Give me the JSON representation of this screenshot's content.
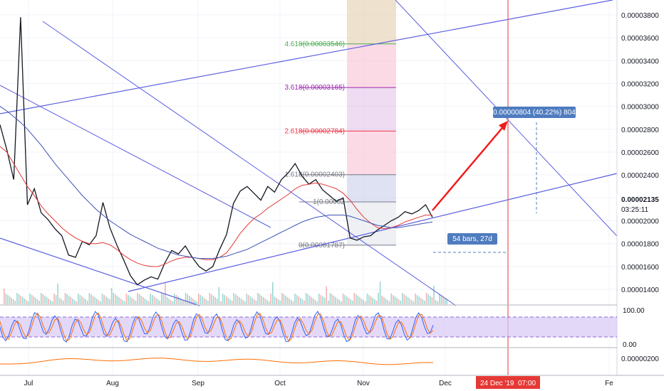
{
  "chart_data": {
    "type": "line",
    "xlabel": "",
    "ylabel": "",
    "x_ticks": [
      "Jul",
      "Aug",
      "Sep",
      "Oct",
      "Nov",
      "Dec",
      "Fe"
    ],
    "y_ticks": [
      "0.00003800",
      "0.00003600",
      "0.00003400",
      "0.00003200",
      "0.00003000",
      "0.00002800",
      "0.00002600",
      "0.00002400",
      "0.00002200",
      "0.00002000",
      "0.00001800",
      "0.00001600",
      "0.00001400"
    ],
    "ylim": [
      1.27e-05,
      3.93e-05
    ],
    "current_price": "0.00002135",
    "countdown": "03:25:11",
    "highlight_date": "24 Dec '19",
    "highlight_time": "07:00",
    "fib_levels": [
      {
        "label": "0(0.00001787)",
        "value": 1.787e-05,
        "color": "#787b86"
      },
      {
        "label": "1(0.00002",
        "value": 2.165e-05,
        "color": "#787b86"
      },
      {
        "label": "1.618(0.00002403)",
        "value": 2.403e-05,
        "color": "#787b86"
      },
      {
        "label": "2.618(0.00002784)",
        "value": 2.784e-05,
        "color": "#f23645"
      },
      {
        "label": "3.618(0.00003165)",
        "value": 3.165e-05,
        "color": "#9c27b0"
      },
      {
        "label": "4.618(0.00003546)",
        "value": 3.546e-05,
        "color": "#4caf50"
      }
    ],
    "measure_label": "0.00000804 (40.22%) 804",
    "bars_label": "54 bars, 27d",
    "rsi_panel": {
      "ticks": [
        "100.00",
        "0.00"
      ]
    },
    "osc_panel": {
      "ticks": [
        "0.00000200"
      ]
    },
    "series": [
      {
        "name": "",
        "color": "#131722",
        "values": [
          2.84e-05,
          2.62e-05,
          2.36e-05,
          3.78e-05,
          2.14e-05,
          2.28e-05,
          2.07e-05,
          2.01e-05,
          1.93e-05,
          1.87e-05,
          1.7e-05,
          1.68e-05,
          1.82e-05,
          1.79e-05,
          1.87e-05,
          2.16e-05,
          1.94e-05,
          1.79e-05,
          1.66e-05,
          1.52e-05,
          1.44e-05,
          1.48e-05,
          1.51e-05,
          1.49e-05,
          1.63e-05,
          1.74e-05,
          1.71e-05,
          1.78e-05,
          1.68e-05,
          1.6e-05,
          1.56e-05,
          1.6e-05,
          1.75e-05,
          1.88e-05,
          2.15e-05,
          2.26e-05,
          2.3e-05,
          2.24e-05,
          2.18e-05,
          2.3e-05,
          2.25e-05,
          2.36e-05,
          2.42e-05,
          2.5e-05,
          2.39e-05,
          2.32e-05,
          2.36e-05,
          2.27e-05,
          2.22e-05,
          2.17e-05,
          2.2e-05,
          1.85e-05,
          1.83e-05,
          1.86e-05,
          1.87e-05,
          1.92e-05,
          1.96e-05,
          2e-05,
          2.03e-05,
          2.08e-05,
          2.06e-05,
          2.09e-05,
          2.14e-05,
          2.03e-05
        ]
      },
      {
        "name": "",
        "color": "#e53935",
        "values": [
          2.65e-05,
          2.6e-05,
          2.5e-05,
          2.4e-05,
          2.3e-05,
          2.22e-05,
          2.13e-05,
          2.06e-05,
          2e-05,
          1.94e-05,
          1.89e-05,
          1.85e-05,
          1.82e-05,
          1.8e-05,
          1.8e-05,
          1.81e-05,
          1.79e-05,
          1.75e-05,
          1.7e-05,
          1.66e-05,
          1.63e-05,
          1.61e-05,
          1.6e-05,
          1.6e-05,
          1.62e-05,
          1.65e-05,
          1.67e-05,
          1.68e-05,
          1.68e-05,
          1.67e-05,
          1.66e-05,
          1.66e-05,
          1.68e-05,
          1.72e-05,
          1.8e-05,
          1.89e-05,
          1.96e-05,
          2.02e-05,
          2.06e-05,
          2.11e-05,
          2.15e-05,
          2.19e-05,
          2.23e-05,
          2.28e-05,
          2.31e-05,
          2.32e-05,
          2.33e-05,
          2.32e-05,
          2.3e-05,
          2.28e-05,
          2.24e-05,
          2.18e-05,
          2.1e-05,
          2.03e-05,
          1.98e-05,
          1.94e-05,
          1.93e-05,
          1.94e-05,
          1.96e-05,
          1.99e-05,
          2.01e-05,
          2.03e-05,
          2.05e-05,
          2.05e-05
        ]
      },
      {
        "name": "",
        "color": "#3f51b5",
        "values": [
          3e-05,
          2.96e-05,
          2.91e-05,
          2.86e-05,
          2.8e-05,
          2.73e-05,
          2.66e-05,
          2.58e-05,
          2.5e-05,
          2.43e-05,
          2.36e-05,
          2.29e-05,
          2.22e-05,
          2.16e-05,
          2.1e-05,
          2.05e-05,
          2e-05,
          1.96e-05,
          1.92e-05,
          1.88e-05,
          1.85e-05,
          1.82e-05,
          1.79e-05,
          1.76e-05,
          1.74e-05,
          1.72e-05,
          1.7e-05,
          1.69e-05,
          1.68e-05,
          1.67e-05,
          1.67e-05,
          1.67e-05,
          1.68e-05,
          1.69e-05,
          1.71e-05,
          1.73e-05,
          1.75e-05,
          1.78e-05,
          1.81e-05,
          1.84e-05,
          1.87e-05,
          1.9e-05,
          1.93e-05,
          1.96e-05,
          1.99e-05,
          2.01e-05,
          2.03e-05,
          2.04e-05,
          2.05e-05,
          2.05e-05,
          2.05e-05,
          2.04e-05,
          2.02e-05,
          2e-05,
          1.98e-05,
          1.96e-05,
          1.95e-05,
          1.94e-05,
          1.94e-05,
          1.95e-05,
          1.96e-05,
          1.97e-05,
          1.98e-05,
          1.99e-05
        ]
      }
    ]
  }
}
